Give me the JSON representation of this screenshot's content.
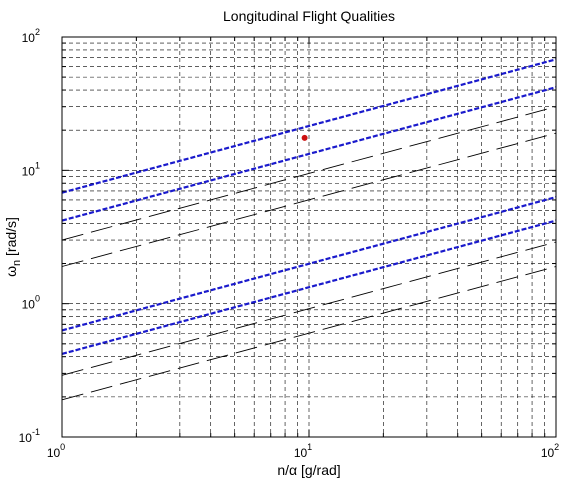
{
  "chart_data": {
    "type": "line",
    "title": "Longitudinal Flight Qualities",
    "xlabel": "n/α [g/rad]",
    "ylabel": {
      "main": "ω",
      "sub": "n",
      "rest": " [rad/s]"
    },
    "xscale": "log",
    "yscale": "log",
    "xlim": [
      1,
      100
    ],
    "ylim": [
      0.1,
      100
    ],
    "grid": true,
    "x_ticks": [
      {
        "base": "10",
        "exp": "0"
      },
      {
        "base": "10",
        "exp": "1"
      },
      {
        "base": "10",
        "exp": "2"
      }
    ],
    "y_ticks": [
      {
        "base": "10",
        "exp": "-1"
      },
      {
        "base": "10",
        "exp": "0"
      },
      {
        "base": "10",
        "exp": "1"
      },
      {
        "base": "10",
        "exp": "2"
      }
    ],
    "series": [
      {
        "style": "blue-dashed",
        "color": "#1a1acc",
        "x": [
          1,
          100
        ],
        "y": [
          6.8,
          68
        ]
      },
      {
        "style": "blue-dashed",
        "color": "#1a1acc",
        "x": [
          1,
          100
        ],
        "y": [
          4.2,
          42
        ]
      },
      {
        "style": "blue-dashed",
        "color": "#1a1acc",
        "x": [
          1,
          100
        ],
        "y": [
          0.63,
          6.3
        ]
      },
      {
        "style": "blue-dashed",
        "color": "#1a1acc",
        "x": [
          1,
          100
        ],
        "y": [
          0.42,
          4.2
        ]
      },
      {
        "style": "black-longdash",
        "color": "#000000",
        "x": [
          1,
          100
        ],
        "y": [
          3.0,
          30
        ]
      },
      {
        "style": "black-longdash",
        "color": "#000000",
        "x": [
          1,
          100
        ],
        "y": [
          1.9,
          19
        ]
      },
      {
        "style": "black-longdash",
        "color": "#000000",
        "x": [
          1,
          100
        ],
        "y": [
          0.29,
          2.9
        ]
      },
      {
        "style": "black-longdash",
        "color": "#000000",
        "x": [
          1,
          100
        ],
        "y": [
          0.19,
          1.9
        ]
      }
    ],
    "points": [
      {
        "x": 9.6,
        "y": 17.5,
        "color": "#cc1111"
      }
    ]
  }
}
